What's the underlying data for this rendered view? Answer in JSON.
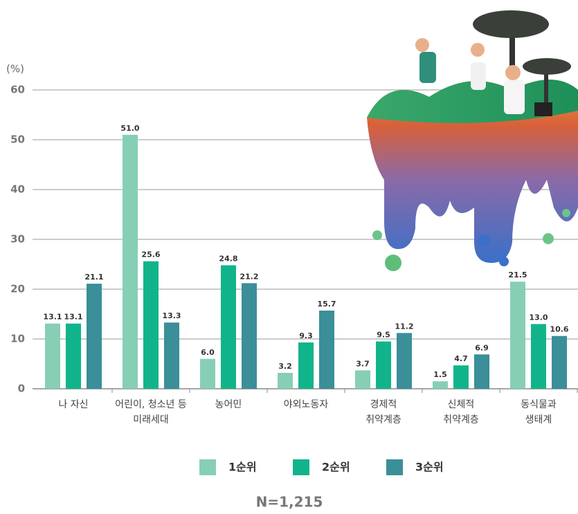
{
  "chart_data": {
    "type": "bar",
    "y_label": "(%)",
    "categories": [
      "나 자신",
      "어린이, 청소년 등\n미래세대",
      "농어민",
      "야외노동자",
      "경제적\n취약계층",
      "신체적\n취약계층",
      "동식물과\n생태계"
    ],
    "series": [
      {
        "name": "1순위",
        "color": "#86cfb4",
        "values": [
          13.1,
          51,
          6,
          3.2,
          3.7,
          1.5,
          21.5
        ],
        "value_labels": [
          "13.1",
          "51.0",
          "6.0",
          "3.2",
          "3.7",
          "1.5",
          "21.5"
        ]
      },
      {
        "name": "2순위",
        "color": "#11b48a",
        "values": [
          13.1,
          25.6,
          24.8,
          9.3,
          9.5,
          4.7,
          13
        ],
        "value_labels": [
          "13.1",
          "25.6",
          "24.8",
          "9.3",
          "9.5",
          "4.7",
          "13.0"
        ]
      },
      {
        "name": "3순위",
        "color": "#3a8f98",
        "values": [
          21.1,
          13.3,
          21.2,
          15.7,
          11.2,
          6.9,
          10.6
        ],
        "value_labels": [
          "21.1",
          "13.3",
          "21.2",
          "15.7",
          "11.2",
          "6.9",
          "10.6"
        ]
      }
    ],
    "ylim": [
      0,
      60
    ],
    "yticks": [
      0,
      10,
      20,
      30,
      40,
      50,
      60
    ],
    "grid": true,
    "note": "N=1,215"
  }
}
